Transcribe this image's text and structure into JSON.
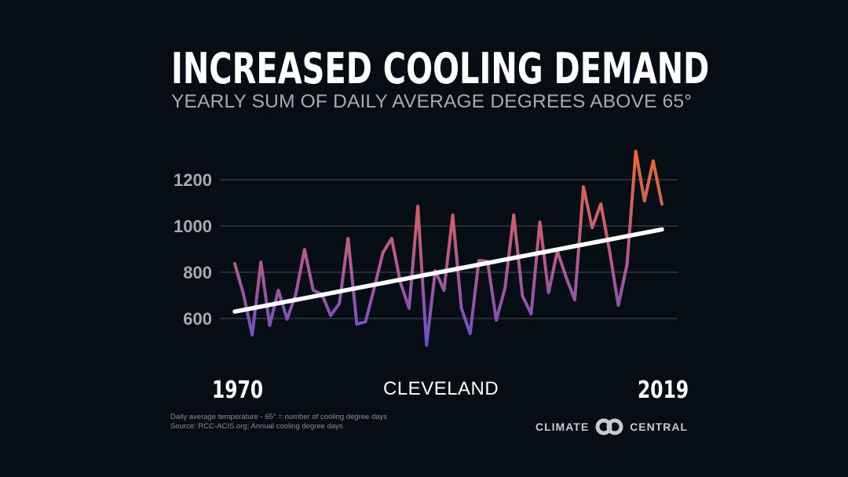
{
  "header": {
    "title": "INCREASED COOLING DEMAND",
    "subtitle": "YEARLY SUM OF DAILY AVERAGE DEGREES ABOVE 65°"
  },
  "chart_data": {
    "type": "line",
    "title": "INCREASED COOLING DEMAND",
    "subtitle": "YEARLY SUM OF DAILY AVERAGE DEGREES ABOVE 65°",
    "location": "CLEVELAND",
    "x": [
      1970,
      1971,
      1972,
      1973,
      1974,
      1975,
      1976,
      1977,
      1978,
      1979,
      1980,
      1981,
      1982,
      1983,
      1984,
      1985,
      1986,
      1987,
      1988,
      1989,
      1990,
      1991,
      1992,
      1993,
      1994,
      1995,
      1996,
      1997,
      1998,
      1999,
      2000,
      2001,
      2002,
      2003,
      2004,
      2005,
      2006,
      2007,
      2008,
      2009,
      2010,
      2011,
      2012,
      2013,
      2014,
      2015,
      2016,
      2017,
      2018,
      2019
    ],
    "series": [
      {
        "values": [
          837,
          705,
          529,
          844,
          570,
          722,
          597,
          705,
          898,
          722,
          705,
          613,
          665,
          946,
          576,
          586,
          732,
          885,
          946,
          756,
          644,
          1085,
          485,
          807,
          722,
          1047,
          644,
          535,
          851,
          847,
          593,
          732,
          1047,
          698,
          620,
          1017,
          712,
          891,
          780,
          681,
          1169,
          993,
          1095,
          891,
          657,
          834,
          1322,
          1108,
          1281,
          1095
        ]
      }
    ],
    "trend": {
      "start": [
        1970,
        630
      ],
      "end": [
        2019,
        985
      ]
    },
    "xtick_labels": [
      "1970",
      "2019"
    ],
    "yticks": [
      600,
      800,
      1000,
      1200
    ],
    "ylim": [
      430,
      1340
    ],
    "grid": true,
    "colors": {
      "low": "#6a4fc8",
      "mid": "#b35a8c",
      "high": "#e86a32",
      "trend": "#ffffff",
      "grid": "#3a4350"
    }
  },
  "footer": {
    "note_line1": "Daily average temperature - 65° = number of cooling degree days",
    "note_line2": "Source: RCC-ACIS.org; Annual cooling degree days",
    "logo_left": "CLIMATE",
    "logo_right": "CENTRAL"
  }
}
